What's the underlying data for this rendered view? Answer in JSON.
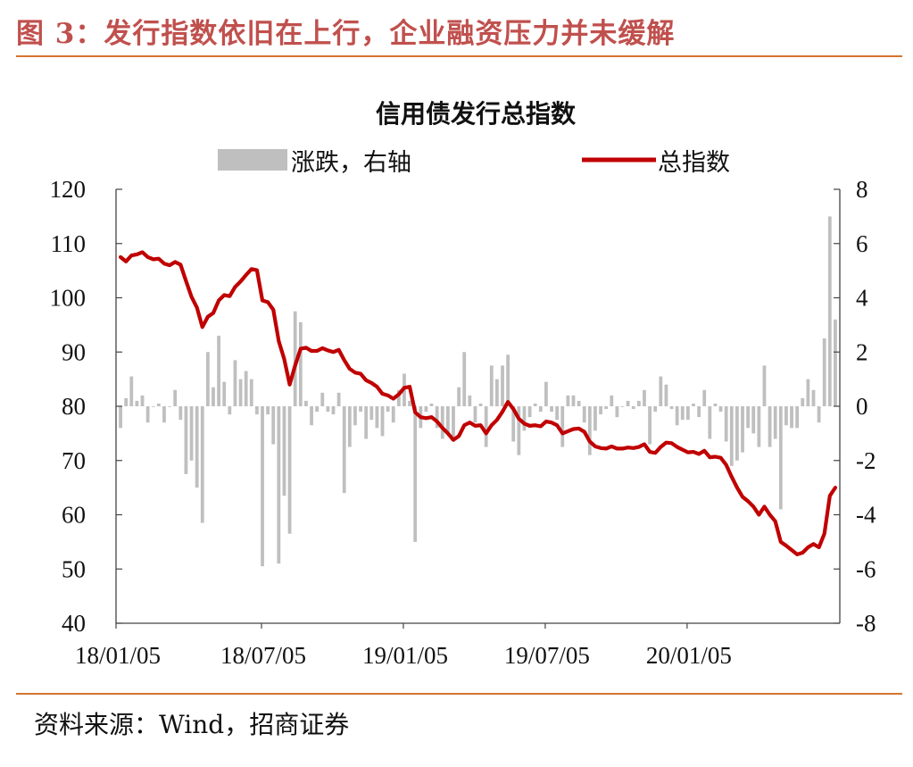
{
  "figure_title": "图 3：发行指数依旧在上行，企业融资压力并未缓解",
  "source": "资料来源：Wind，招商证券",
  "colors": {
    "accent": "#c0504d",
    "rule": "#d4752f",
    "line": "#c00000",
    "bar": "#bfbfbf"
  },
  "chart_data": {
    "type": "bar+line",
    "title": "信用债发行总指数",
    "legend_position": "top",
    "legend": [
      "涨跌，右轴",
      "总指数"
    ],
    "x_tick_labels": [
      "18/01/05",
      "18/07/05",
      "19/01/05",
      "19/07/05",
      "20/01/05"
    ],
    "y_left": {
      "lim": [
        40,
        120
      ],
      "ticks": [
        "40",
        "50",
        "60",
        "70",
        "80",
        "90",
        "100",
        "110",
        "120"
      ]
    },
    "y_right": {
      "lim": [
        -8,
        8
      ],
      "ticks": [
        "-8",
        "-6",
        "-4",
        "-2",
        "0",
        "2",
        "4",
        "6",
        "8"
      ]
    },
    "grid": false,
    "series": [
      {
        "name": "总指数",
        "axis": "left",
        "kind": "line",
        "values": [
          107.5,
          106.7,
          107.8,
          108.0,
          108.4,
          107.5,
          107.1,
          107.2,
          106.3,
          106.0,
          106.6,
          106.1,
          103.1,
          100.2,
          98.2,
          94.6,
          96.5,
          97.2,
          99.5,
          100.5,
          100.3,
          102.0,
          103.0,
          104.2,
          105.3,
          105.1,
          99.5,
          99.2,
          97.8,
          92.0,
          88.7,
          84.0,
          87.5,
          90.6,
          90.8,
          90.2,
          90.2,
          90.7,
          90.3,
          90.0,
          90.4,
          88.5,
          86.9,
          86.2,
          86.0,
          84.8,
          84.3,
          83.6,
          82.3,
          82.0,
          81.4,
          82.2,
          83.4,
          83.6,
          78.9,
          78.0,
          77.8,
          78.0,
          77.2,
          76.0,
          75.0,
          73.8,
          74.5,
          76.5,
          77.0,
          76.4,
          76.5,
          75.0,
          76.5,
          77.5,
          79.0,
          80.8,
          79.5,
          77.7,
          76.8,
          76.4,
          76.5,
          76.3,
          77.2,
          77.0,
          76.5,
          75.0,
          75.4,
          75.8,
          75.9,
          75.3,
          73.5,
          72.6,
          72.3,
          72.2,
          72.6,
          72.2,
          72.2,
          72.4,
          72.3,
          72.5,
          73.0,
          71.6,
          71.4,
          72.5,
          73.3,
          73.2,
          72.5,
          72.0,
          71.5,
          71.6,
          71.2,
          71.8,
          70.6,
          70.7,
          70.5,
          69.2,
          67.0,
          65.0,
          63.3,
          62.5,
          61.5,
          60.0,
          61.5,
          60.0,
          58.8,
          55.0,
          54.3,
          53.5,
          52.7,
          53.0,
          54.0,
          54.6,
          54.0,
          56.5,
          63.5,
          65.0
        ]
      },
      {
        "name": "涨跌，右轴",
        "axis": "right",
        "kind": "bar",
        "values": [
          -0.8,
          0.3,
          1.1,
          0.2,
          0.4,
          -0.6,
          0,
          0.1,
          -0.6,
          0,
          0.6,
          -0.5,
          -2.5,
          -2.0,
          -3.0,
          -4.3,
          2.0,
          0.7,
          2.6,
          0.9,
          -0.3,
          1.7,
          1.0,
          1.3,
          1.0,
          -0.3,
          -5.9,
          -0.3,
          -1.4,
          -5.8,
          -3.3,
          -4.7,
          3.5,
          3.1,
          0.2,
          -0.7,
          -0.2,
          0.5,
          -0.2,
          -0.3,
          0.5,
          -3.2,
          -1.5,
          -0.7,
          -0.2,
          -1.2,
          -0.5,
          -0.8,
          -1.1,
          -0.2,
          -0.6,
          0.6,
          1.2,
          0.2,
          -5.0,
          -0.8,
          -0.2,
          0.1,
          -0.8,
          -1.2,
          -1.0,
          -1.2,
          0.7,
          2.0,
          0.4,
          -0.6,
          0.1,
          -1.5,
          1.5,
          1.0,
          1.5,
          1.9,
          -1.3,
          -1.8,
          -0.9,
          -0.4,
          0.1,
          -0.2,
          0.9,
          -0.2,
          -0.5,
          -1.5,
          0.4,
          0.4,
          0.2,
          -0.6,
          -1.8,
          -0.9,
          -0.3,
          -0.1,
          0.4,
          -0.4,
          0,
          0.2,
          -0.1,
          0.2,
          0.6,
          -1.4,
          -0.2,
          1.1,
          0.8,
          -0.1,
          -0.7,
          -0.5,
          -0.5,
          0.1,
          -0.4,
          0.6,
          -1.2,
          0.1,
          -0.2,
          -1.3,
          -2.2,
          -2.0,
          -1.7,
          -0.8,
          -1.0,
          -1.5,
          1.5,
          -1.5,
          -1.2,
          -3.8,
          -0.7,
          -0.8,
          -0.8,
          0.3,
          1.0,
          0.6,
          -0.6,
          2.5,
          7.0,
          3.2
        ]
      }
    ]
  }
}
